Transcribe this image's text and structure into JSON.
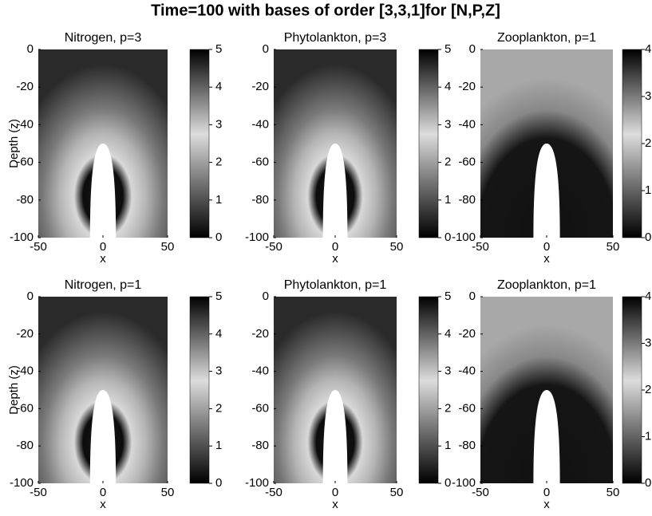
{
  "title": "Time=100 with bases of order [3,3,1]for [N,P,Z]",
  "chart_data": [
    {
      "type": "heatmap",
      "title": "Nitrogen, p=3",
      "xlabel": "x",
      "ylabel": "Depth (z)",
      "xlim": [
        -50,
        50
      ],
      "xticks": [
        -50,
        0,
        50
      ],
      "ylim": [
        -100,
        0
      ],
      "yticks": [
        -100,
        -80,
        -60,
        -40,
        -20,
        0
      ],
      "clim": [
        0,
        5
      ],
      "cticks": [
        0,
        1,
        2,
        3,
        4,
        5
      ]
    },
    {
      "type": "heatmap",
      "title": "Phytolankton, p=3",
      "xlabel": "x",
      "xlim": [
        -50,
        50
      ],
      "xticks": [
        -50,
        0,
        50
      ],
      "ylim": [
        -100,
        0
      ],
      "yticks": [
        -100,
        -80,
        -60,
        -40,
        -20,
        0
      ],
      "clim": [
        0,
        5
      ],
      "cticks": [
        0,
        1,
        2,
        3,
        4,
        5
      ]
    },
    {
      "type": "heatmap",
      "title": "Zooplankton, p=1",
      "xlabel": "x",
      "xlim": [
        -50,
        50
      ],
      "xticks": [
        -50,
        0,
        50
      ],
      "ylim": [
        -100,
        0
      ],
      "yticks": [
        -100,
        -80,
        -60,
        -40,
        -20,
        0
      ],
      "clim": [
        0,
        4
      ],
      "cticks": [
        0,
        1,
        2,
        3,
        4
      ]
    },
    {
      "type": "heatmap",
      "title": "Nitrogen, p=1",
      "xlabel": "x",
      "ylabel": "Depth (z)",
      "xlim": [
        -50,
        50
      ],
      "xticks": [
        -50,
        0,
        50
      ],
      "ylim": [
        -100,
        0
      ],
      "yticks": [
        -100,
        -80,
        -60,
        -40,
        -20,
        0
      ],
      "clim": [
        0,
        5
      ],
      "cticks": [
        0,
        1,
        2,
        3,
        4,
        5
      ]
    },
    {
      "type": "heatmap",
      "title": "Phytolankton, p=1",
      "xlabel": "x",
      "xlim": [
        -50,
        50
      ],
      "xticks": [
        -50,
        0,
        50
      ],
      "ylim": [
        -100,
        0
      ],
      "yticks": [
        -100,
        -80,
        -60,
        -40,
        -20,
        0
      ],
      "clim": [
        0,
        5
      ],
      "cticks": [
        0,
        1,
        2,
        3,
        4,
        5
      ]
    },
    {
      "type": "heatmap",
      "title": "Zooplankton, p=1",
      "xlabel": "x",
      "xlim": [
        -50,
        50
      ],
      "xticks": [
        -50,
        0,
        50
      ],
      "ylim": [
        -100,
        0
      ],
      "yticks": [
        -100,
        -80,
        -60,
        -40,
        -20,
        0
      ],
      "clim": [
        0,
        4
      ],
      "cticks": [
        0,
        1,
        2,
        3,
        4
      ]
    }
  ]
}
